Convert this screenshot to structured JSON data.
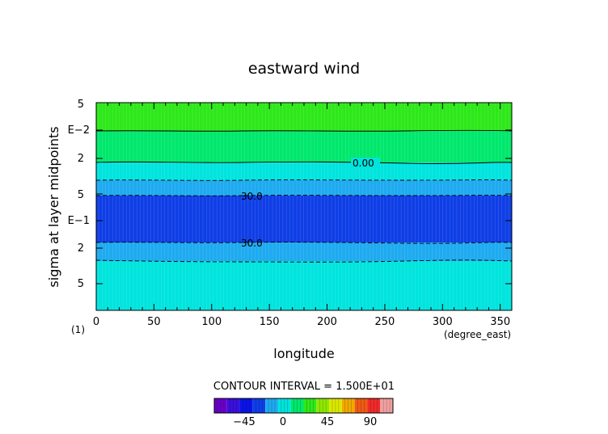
{
  "chart_data": {
    "type": "heatmap",
    "title": "eastward wind",
    "xlabel": "longitude",
    "ylabel": "sigma at layer midpoints",
    "x_unit_label": "(degree_east)",
    "y_corner_label": "(1)",
    "xlim": [
      0,
      360
    ],
    "x_ticks": [
      0,
      50,
      100,
      150,
      200,
      250,
      300,
      350
    ],
    "y_scale": "log",
    "y_direction": "downward (sigma increases toward bottom)",
    "y_tick_labels": [
      "5",
      "E−2",
      "2",
      "5",
      "E−1",
      "2",
      "5"
    ],
    "contour_interval_text": "CONTOUR INTERVAL = 1.500E+01",
    "contour_labels": [
      "0.00",
      "30.0",
      "30.0"
    ],
    "bands_top_to_bottom": [
      {
        "range": "15 to 30",
        "color": "#2ee81a"
      },
      {
        "range": "0 to 15",
        "color": "#00e86c"
      },
      {
        "range": "-15 to 0",
        "color": "#00e4de"
      },
      {
        "range": "-30 to -15",
        "color": "#1eaaf0"
      },
      {
        "range": "-45 to -30",
        "color": "#0f3ee6"
      },
      {
        "range": "-30 to -15",
        "color": "#1eaaf0"
      },
      {
        "range": "-15 to 0",
        "color": "#00e4de"
      }
    ],
    "colorbar": {
      "ticks": [
        "−45",
        "0",
        "45",
        "90"
      ],
      "colors": [
        "#6a00c8",
        "#3a10dc",
        "#0a14e6",
        "#0f3ee6",
        "#1eaaf0",
        "#00e4de",
        "#00e86c",
        "#2ee81a",
        "#8ee800",
        "#dce800",
        "#f0aa00",
        "#f05a14",
        "#f02a2a",
        "#f0a0a0"
      ]
    },
    "grid": false
  }
}
